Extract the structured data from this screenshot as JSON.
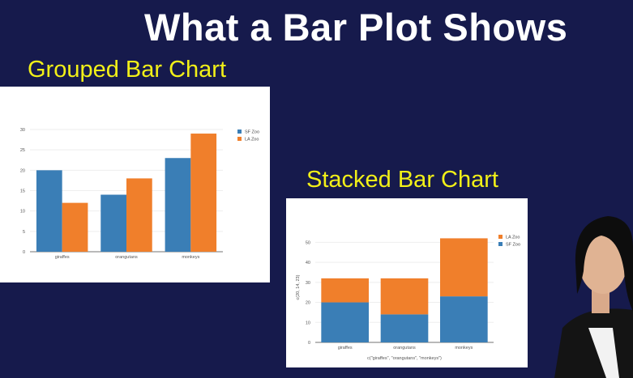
{
  "slide": {
    "title": "What a Bar Plot Shows"
  },
  "labels": {
    "grouped": "Grouped Bar Chart",
    "stacked": "Stacked Bar Chart"
  },
  "colors": {
    "background": "#161a4c",
    "accent_text": "#f2f018",
    "series_blue": "#3a7eb6",
    "series_orange": "#f07f2b"
  },
  "chart_data": [
    {
      "type": "bar",
      "mode": "grouped",
      "categories": [
        "giraffes",
        "orangutans",
        "monkeys"
      ],
      "series": [
        {
          "name": "SF Zoo",
          "values": [
            20,
            14,
            23
          ],
          "color": "#3a7eb6"
        },
        {
          "name": "LA Zoo",
          "values": [
            12,
            18,
            29
          ],
          "color": "#f07f2b"
        }
      ],
      "ylim": [
        0,
        30
      ],
      "yticks": [
        0,
        5,
        10,
        15,
        20,
        25,
        30
      ],
      "xlabel": "",
      "ylabel": "",
      "legend": "top-right",
      "grid": true
    },
    {
      "type": "bar",
      "mode": "stacked",
      "categories": [
        "giraffes",
        "orangutans",
        "monkeys"
      ],
      "series": [
        {
          "name": "SF Zoo",
          "values": [
            20,
            14,
            23
          ],
          "color": "#3a7eb6"
        },
        {
          "name": "LA Zoo",
          "values": [
            12,
            18,
            29
          ],
          "color": "#f07f2b"
        }
      ],
      "ylim": [
        0,
        55
      ],
      "yticks": [
        0,
        10,
        20,
        30,
        40,
        50
      ],
      "xlabel": "c(\"giraffes\", \"orangutans\", \"monkeys\")",
      "ylabel": "c(20, 14, 23)",
      "legend": "top-right",
      "legend_order": [
        "LA Zoo",
        "SF Zoo"
      ],
      "grid": true
    }
  ]
}
